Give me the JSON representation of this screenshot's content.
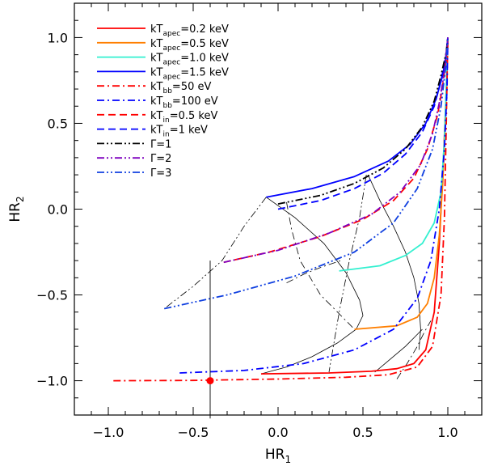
{
  "chart_data": {
    "type": "line",
    "title": "",
    "xlabel": "HR",
    "xlabel_sub": "1",
    "ylabel": "HR",
    "ylabel_sub": "2",
    "xlim": [
      -1.2,
      1.2
    ],
    "ylim": [
      -1.2,
      1.2
    ],
    "x_ticks": [
      -1.0,
      -0.5,
      0.0,
      0.5,
      1.0
    ],
    "x_tick_labels": [
      "−1.0",
      "−0.5",
      "0.0",
      "0.5",
      "1.0"
    ],
    "y_ticks": [
      -1.0,
      -0.5,
      0.0,
      0.5,
      1.0
    ],
    "y_tick_labels": [
      "−1.0",
      "−0.5",
      "0.0",
      "0.5",
      "1.0"
    ],
    "legend_position": "top-left",
    "series": [
      {
        "name": "kT_apec=0.2 keV",
        "label": {
          "pre": "kT",
          "sub": "apec",
          "post": "=0.2 keV"
        },
        "color": "#ff0000",
        "dash": "solid",
        "x": [
          -0.1,
          0.3,
          0.55,
          0.7,
          0.8,
          0.87,
          0.92,
          0.95,
          0.97,
          0.985,
          0.995,
          1.0
        ],
        "y": [
          -0.96,
          -0.955,
          -0.945,
          -0.93,
          -0.9,
          -0.82,
          -0.6,
          -0.2,
          0.2,
          0.55,
          0.8,
          1.0
        ]
      },
      {
        "name": "kT_apec=0.5 keV",
        "label": {
          "pre": "kT",
          "sub": "apec",
          "post": "=0.5 keV"
        },
        "color": "#ff7f00",
        "dash": "solid",
        "x": [
          0.45,
          0.7,
          0.82,
          0.88,
          0.92,
          0.95,
          0.97,
          0.985,
          0.995,
          1.0
        ],
        "y": [
          -0.7,
          -0.68,
          -0.63,
          -0.55,
          -0.4,
          -0.15,
          0.15,
          0.5,
          0.8,
          1.0
        ]
      },
      {
        "name": "kT_apec=1.0 keV",
        "label": {
          "pre": "kT",
          "sub": "apec",
          "post": "=1.0 keV"
        },
        "color": "#33f0d0",
        "dash": "solid",
        "x": [
          0.36,
          0.6,
          0.75,
          0.85,
          0.92,
          0.96,
          0.98,
          0.99,
          1.0
        ],
        "y": [
          -0.36,
          -0.33,
          -0.27,
          -0.2,
          -0.08,
          0.1,
          0.4,
          0.7,
          1.0
        ]
      },
      {
        "name": "kT_apec=1.5 keV",
        "label": {
          "pre": "kT",
          "sub": "apec",
          "post": "=1.5 keV"
        },
        "color": "#0000ff",
        "dash": "solid",
        "x": [
          -0.07,
          0.2,
          0.45,
          0.65,
          0.78,
          0.87,
          0.93,
          0.97,
          0.99,
          1.0
        ],
        "y": [
          0.07,
          0.12,
          0.19,
          0.28,
          0.38,
          0.5,
          0.64,
          0.78,
          0.9,
          1.0
        ]
      },
      {
        "name": "kT_bb=50 eV",
        "label": {
          "pre": "kT",
          "sub": "bb",
          "post": "=50 eV"
        },
        "color": "#ff0000",
        "dash": "dashdot",
        "x": [
          -0.97,
          -0.5,
          0.0,
          0.4,
          0.65,
          0.82,
          0.91,
          0.96,
          0.98,
          0.99,
          1.0
        ],
        "y": [
          -1.0,
          -0.998,
          -0.99,
          -0.98,
          -0.965,
          -0.92,
          -0.8,
          -0.5,
          -0.05,
          0.45,
          1.0
        ]
      },
      {
        "name": "kT_bb=100 eV",
        "label": {
          "pre": "kT",
          "sub": "bb",
          "post": "=100 eV"
        },
        "color": "#0000ff",
        "dash": "dashdot",
        "x": [
          -0.58,
          -0.2,
          0.15,
          0.45,
          0.68,
          0.82,
          0.9,
          0.95,
          0.98,
          0.995,
          1.0
        ],
        "y": [
          -0.955,
          -0.94,
          -0.9,
          -0.82,
          -0.7,
          -0.52,
          -0.3,
          0.0,
          0.35,
          0.7,
          1.0
        ]
      },
      {
        "name": "kT_in=0.5 keV",
        "label": {
          "pre": "kT",
          "sub": "in",
          "post": "=0.5 keV"
        },
        "color": "#ff0000",
        "dash": "dashed",
        "x": [
          -0.32,
          -0.05,
          0.25,
          0.5,
          0.68,
          0.8,
          0.88,
          0.94,
          0.97,
          0.99,
          1.0
        ],
        "y": [
          -0.31,
          -0.25,
          -0.16,
          -0.06,
          0.05,
          0.18,
          0.35,
          0.55,
          0.72,
          0.88,
          1.0
        ]
      },
      {
        "name": "kT_in=1 keV",
        "label": {
          "pre": "kT",
          "sub": "in",
          "post": "=1 keV"
        },
        "color": "#0000ff",
        "dash": "dashed",
        "x": [
          0.0,
          0.25,
          0.45,
          0.62,
          0.75,
          0.85,
          0.92,
          0.96,
          0.99,
          1.0
        ],
        "y": [
          0.0,
          0.05,
          0.12,
          0.21,
          0.32,
          0.45,
          0.6,
          0.75,
          0.9,
          1.0
        ]
      },
      {
        "name": "Γ=1",
        "label": {
          "pre": "Γ=1",
          "sub": "",
          "post": ""
        },
        "color": "#000000",
        "dash": "dashdotdot",
        "x": [
          0.0,
          0.25,
          0.45,
          0.62,
          0.75,
          0.85,
          0.92,
          0.96,
          0.99,
          1.0
        ],
        "y": [
          0.03,
          0.08,
          0.15,
          0.24,
          0.35,
          0.48,
          0.63,
          0.78,
          0.91,
          1.0
        ]
      },
      {
        "name": "Γ=2",
        "label": {
          "pre": "Γ=2",
          "sub": "",
          "post": ""
        },
        "color": "#7f00bf",
        "dash": "dashdotdot",
        "x": [
          -0.32,
          0.0,
          0.3,
          0.55,
          0.72,
          0.84,
          0.91,
          0.95,
          0.98,
          1.0
        ],
        "y": [
          -0.31,
          -0.24,
          -0.14,
          -0.03,
          0.1,
          0.26,
          0.44,
          0.62,
          0.8,
          1.0
        ]
      },
      {
        "name": "Γ=3",
        "label": {
          "pre": "Γ=3",
          "sub": "",
          "post": ""
        },
        "color": "#1040e0",
        "dash": "dashdotdot",
        "x": [
          -0.67,
          -0.3,
          0.1,
          0.45,
          0.68,
          0.82,
          0.91,
          0.96,
          0.99,
          1.0
        ],
        "y": [
          -0.58,
          -0.5,
          -0.39,
          -0.25,
          -0.08,
          0.12,
          0.35,
          0.6,
          0.85,
          1.0
        ]
      }
    ],
    "guide_lines": [
      {
        "name": "thin-solid-guide-a",
        "dash": "solid",
        "x": [
          -0.07,
          0.1,
          0.27,
          0.4,
          0.48,
          0.5,
          0.46,
          0.35,
          0.2,
          0.05,
          -0.1
        ],
        "y": [
          0.07,
          -0.05,
          -0.2,
          -0.37,
          -0.53,
          -0.62,
          -0.7,
          -0.78,
          -0.86,
          -0.92,
          -0.96
        ]
      },
      {
        "name": "thin-solid-guide-b",
        "dash": "solid",
        "x": [
          0.53,
          0.6,
          0.68,
          0.75,
          0.8,
          0.83,
          0.84,
          0.83
        ],
        "y": [
          0.2,
          0.05,
          -0.1,
          -0.25,
          -0.4,
          -0.55,
          -0.7,
          -0.82
        ]
      },
      {
        "name": "thin-solid-guide-c",
        "dash": "solid",
        "x": [
          0.57,
          0.63,
          0.69,
          0.75,
          0.8,
          0.85
        ],
        "y": [
          -0.95,
          -0.9,
          -0.85,
          -0.8,
          -0.75,
          -0.7
        ]
      },
      {
        "name": "thin-dashdot-guide-a",
        "dash": "dashdot",
        "x": [
          0.05,
          0.08,
          0.13,
          0.25,
          0.45
        ],
        "y": [
          0.04,
          -0.12,
          -0.3,
          -0.5,
          -0.7
        ]
      },
      {
        "name": "thin-dashdot-guide-b",
        "dash": "dashdot",
        "x": [
          0.05,
          0.15,
          0.25,
          0.37
        ],
        "y": [
          -0.43,
          -0.38,
          -0.34,
          -0.3
        ]
      },
      {
        "name": "thin-dashdot-guide-c",
        "dash": "dashdot",
        "x": [
          0.7,
          0.76,
          0.82,
          0.86,
          0.9
        ],
        "y": [
          -0.99,
          -0.9,
          -0.8,
          -0.72,
          -0.65
        ]
      },
      {
        "name": "thin-dashdotdot-guide-a",
        "dash": "dashdotdot",
        "x": [
          -0.07,
          -0.2,
          -0.33,
          -0.5,
          -0.67
        ],
        "y": [
          0.07,
          -0.1,
          -0.3,
          -0.45,
          -0.58
        ]
      },
      {
        "name": "thin-dashdotdot-guide-b",
        "dash": "dashdotdot",
        "x": [
          0.52,
          0.48,
          0.42,
          0.36,
          0.3
        ],
        "y": [
          0.2,
          -0.05,
          -0.3,
          -0.6,
          -0.95
        ]
      }
    ],
    "data_point": {
      "x": -0.4,
      "y": -1.0,
      "y_err_low": 0.22,
      "y_err_high": 0.7,
      "color": "#ff0000"
    }
  }
}
